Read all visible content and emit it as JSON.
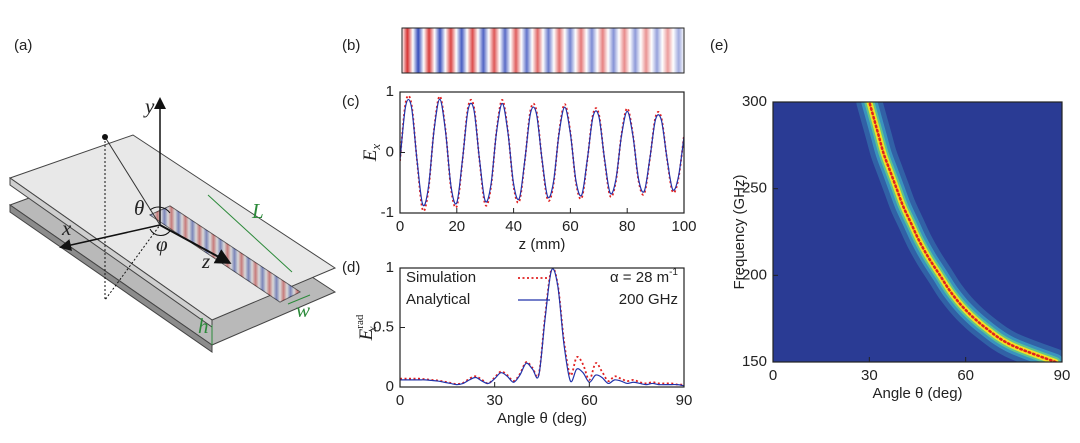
{
  "diagram": {
    "panel_label": "(a)",
    "labels": {
      "y": "y",
      "x": "x",
      "z": "z",
      "theta": "θ",
      "phi": "φ",
      "L": "L",
      "w": "w",
      "h": "h"
    }
  },
  "field_image": {
    "panel_label": "(b)"
  },
  "chart_data": [
    {
      "type": "line",
      "panel_label": "(c)",
      "xlabel": "z (mm)",
      "ylabel": {
        "symbol": "E",
        "subscript": "x"
      },
      "xlim": [
        0,
        100
      ],
      "xticks": [
        0,
        20,
        40,
        60,
        80,
        100
      ],
      "ylim": [
        -1,
        1
      ],
      "yticks": [
        -1,
        0,
        1
      ],
      "x": [
        0,
        2,
        4,
        6,
        8,
        10,
        12,
        14,
        16,
        18,
        20,
        22,
        24,
        26,
        28,
        30,
        32,
        34,
        36,
        38,
        40,
        42,
        44,
        46,
        48,
        50,
        52,
        54,
        56,
        58,
        60,
        62,
        64,
        66,
        68,
        70,
        72,
        74,
        76,
        78,
        80,
        82,
        84,
        86,
        88,
        90,
        92,
        94,
        96,
        98,
        100
      ],
      "series": [
        {
          "name": "Simulation",
          "color": "#e02020",
          "dash": true,
          "values": [
            -0.14,
            0.83,
            0.81,
            -0.14,
            -0.95,
            -0.62,
            0.39,
            0.93,
            0.38,
            -0.61,
            -0.89,
            -0.13,
            0.76,
            0.76,
            -0.13,
            -0.86,
            -0.58,
            0.36,
            0.87,
            0.35,
            -0.56,
            -0.81,
            -0.12,
            0.71,
            0.7,
            -0.12,
            -0.78,
            -0.54,
            0.33,
            0.8,
            0.33,
            -0.51,
            -0.75,
            -0.11,
            0.64,
            0.64,
            -0.11,
            -0.72,
            -0.48,
            0.3,
            0.73,
            0.3,
            -0.47,
            -0.68,
            -0.1,
            0.59,
            0.58,
            -0.1,
            -0.65,
            -0.44,
            0.28
          ]
        },
        {
          "name": "Analytical",
          "color": "#2233aa",
          "dash": false,
          "values": [
            -0.13,
            0.77,
            0.76,
            -0.13,
            -0.86,
            -0.58,
            0.37,
            0.88,
            0.36,
            -0.57,
            -0.83,
            -0.12,
            0.71,
            0.71,
            -0.12,
            -0.8,
            -0.54,
            0.34,
            0.81,
            0.33,
            -0.52,
            -0.76,
            -0.11,
            0.66,
            0.65,
            -0.11,
            -0.73,
            -0.5,
            0.31,
            0.75,
            0.31,
            -0.48,
            -0.7,
            -0.1,
            0.6,
            0.6,
            -0.1,
            -0.67,
            -0.45,
            0.28,
            0.68,
            0.28,
            -0.44,
            -0.64,
            -0.09,
            0.55,
            0.54,
            -0.09,
            -0.61,
            -0.41,
            0.26
          ]
        }
      ]
    },
    {
      "type": "line",
      "panel_label": "(d)",
      "xlabel": "Angle θ (deg)",
      "ylabel": {
        "symbol": "E",
        "subscript": "x",
        "superscript": "rad"
      },
      "xlim": [
        0,
        90
      ],
      "xticks": [
        0,
        30,
        60,
        90
      ],
      "ylim": [
        0,
        1
      ],
      "yticks": [
        0,
        0.5,
        1
      ],
      "annotations": [
        {
          "text": "α = 28 m",
          "superscript": "-1"
        },
        {
          "text": "200 GHz"
        }
      ],
      "legend": "upper left",
      "x": [
        0,
        2,
        4,
        6,
        8,
        10,
        12,
        14,
        16,
        18,
        20,
        22,
        24,
        26,
        28,
        30,
        32,
        34,
        36,
        38,
        40,
        42,
        44,
        46,
        48,
        50,
        52,
        54,
        56,
        58,
        60,
        62,
        64,
        66,
        68,
        70,
        72,
        74,
        76,
        78,
        80,
        82,
        84,
        86,
        88,
        90
      ],
      "series": [
        {
          "name": "Simulation",
          "color": "#e02020",
          "dash": true,
          "values": [
            0.07,
            0.07,
            0.07,
            0.07,
            0.065,
            0.06,
            0.055,
            0.045,
            0.035,
            0.025,
            0.035,
            0.07,
            0.09,
            0.06,
            0.03,
            0.08,
            0.13,
            0.1,
            0.05,
            0.11,
            0.21,
            0.16,
            0.11,
            0.6,
            0.99,
            0.86,
            0.38,
            0.1,
            0.25,
            0.19,
            0.06,
            0.2,
            0.13,
            0.05,
            0.09,
            0.07,
            0.05,
            0.06,
            0.04,
            0.03,
            0.04,
            0.03,
            0.03,
            0.03,
            0.02,
            0.02
          ]
        },
        {
          "name": "Analytical",
          "color": "#2233aa",
          "dash": false,
          "values": [
            0.06,
            0.06,
            0.06,
            0.06,
            0.06,
            0.055,
            0.05,
            0.04,
            0.03,
            0.02,
            0.03,
            0.06,
            0.08,
            0.05,
            0.03,
            0.07,
            0.12,
            0.09,
            0.04,
            0.1,
            0.2,
            0.15,
            0.1,
            0.58,
            0.98,
            0.85,
            0.35,
            0.05,
            0.15,
            0.12,
            0.04,
            0.1,
            0.08,
            0.03,
            0.06,
            0.05,
            0.03,
            0.04,
            0.03,
            0.02,
            0.03,
            0.02,
            0.02,
            0.02,
            0.02,
            0.01
          ]
        }
      ]
    },
    {
      "type": "heatmap",
      "panel_label": "(e)",
      "xlabel": "Angle θ (deg)",
      "ylabel": "Frequency (GHz)",
      "xlim": [
        0,
        90
      ],
      "xticks": [
        0,
        30,
        60,
        90
      ],
      "ylim": [
        150,
        300
      ],
      "yticks": [
        150,
        200,
        250,
        300
      ],
      "colormap": [
        "#2a3b94",
        "#3ea8c9",
        "#63c98a",
        "#f2e024"
      ],
      "color": "#e02020",
      "x": [
        88,
        74,
        66,
        60,
        55.5,
        52,
        48.5,
        45.5,
        43,
        40.5,
        38.5,
        36.5,
        34.5,
        33,
        31.5,
        30
      ],
      "values": [
        150,
        160,
        170,
        180,
        190,
        200,
        210,
        220,
        230,
        240,
        250,
        260,
        270,
        280,
        290,
        300
      ]
    }
  ]
}
